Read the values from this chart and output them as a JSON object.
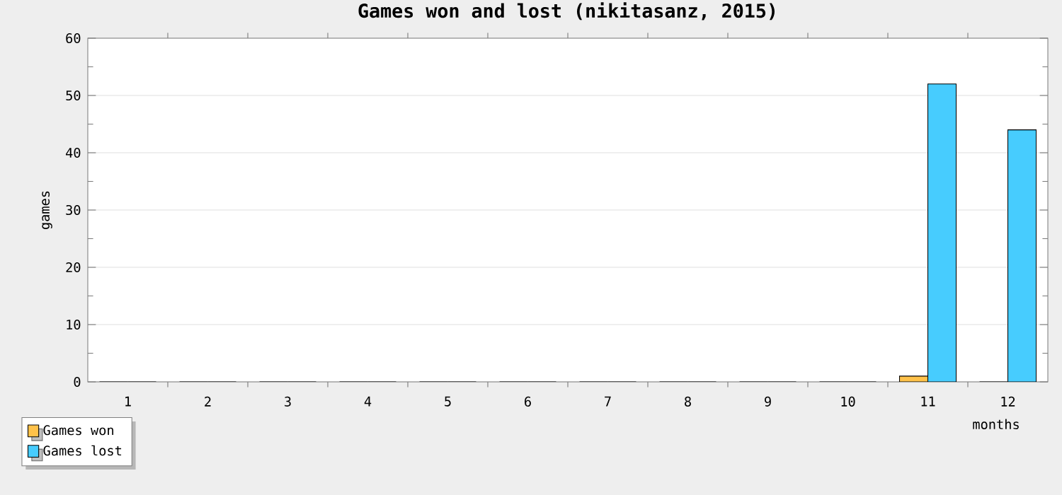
{
  "chart_data": {
    "type": "bar",
    "title": "Games won and lost (nikitasanz, 2015)",
    "xlabel": "months",
    "ylabel": "games",
    "categories": [
      "1",
      "2",
      "3",
      "4",
      "5",
      "6",
      "7",
      "8",
      "9",
      "10",
      "11",
      "12"
    ],
    "series": [
      {
        "name": "Games won",
        "color": "#ffc24a",
        "values": [
          0,
          0,
          0,
          0,
          0,
          0,
          0,
          0,
          0,
          0,
          1,
          0
        ]
      },
      {
        "name": "Games lost",
        "color": "#47ccfe",
        "values": [
          0,
          0,
          0,
          0,
          0,
          0,
          0,
          0,
          0,
          0,
          52,
          44
        ]
      }
    ],
    "ylim": [
      0,
      60
    ],
    "yticks": [
      0,
      10,
      20,
      30,
      40,
      50,
      60
    ],
    "grid": "y",
    "legend": "bottom left"
  }
}
